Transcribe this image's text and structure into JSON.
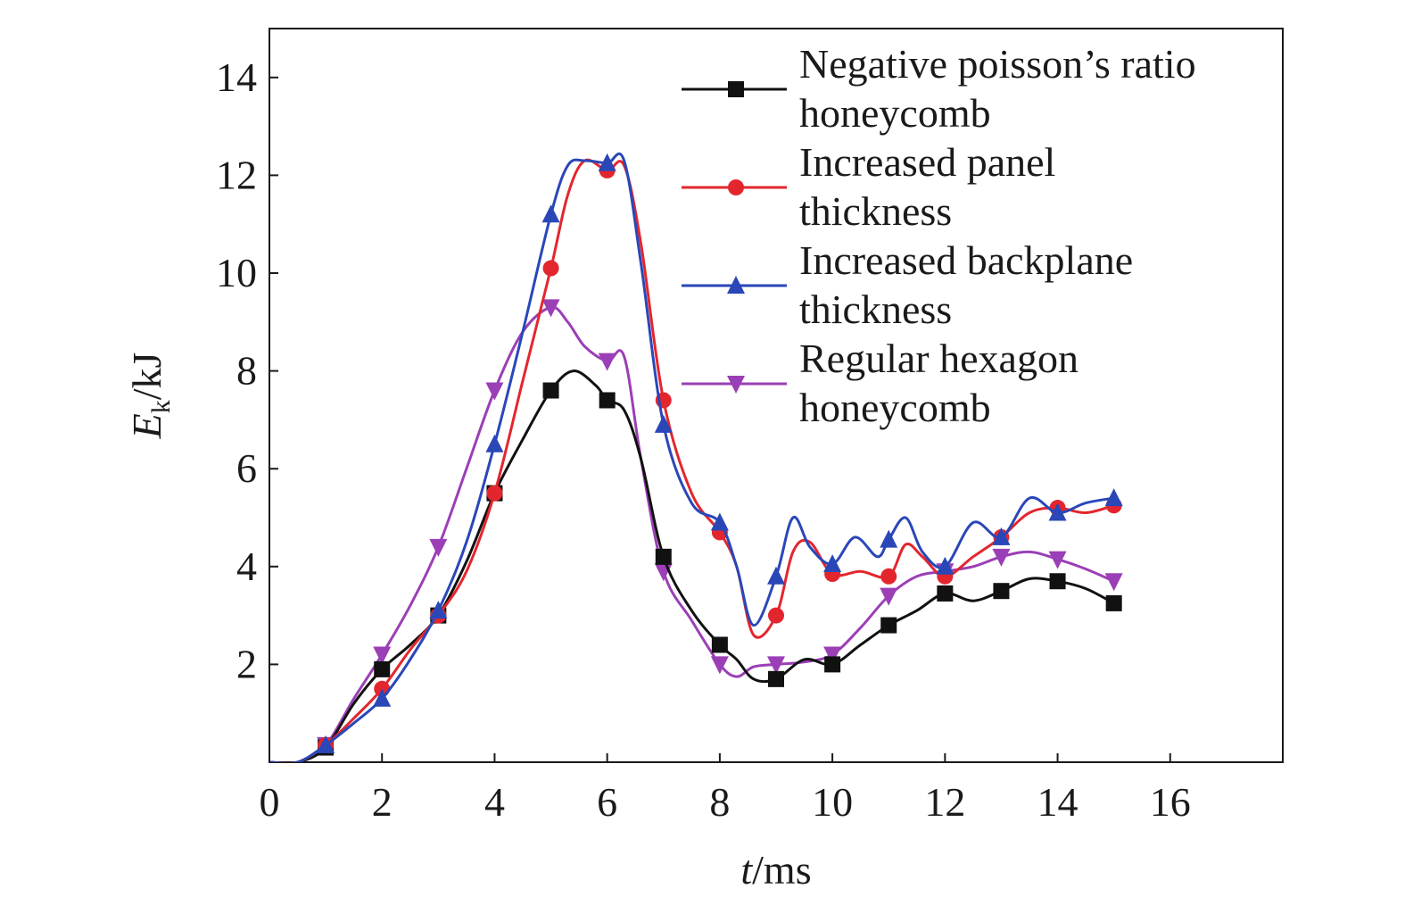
{
  "chart_data": {
    "type": "line",
    "xlabel": {
      "var": "t",
      "unit": "/ms"
    },
    "ylabel": {
      "var": "E",
      "sub": "k",
      "unit": "/kJ"
    },
    "xlim": [
      0,
      18
    ],
    "ylim": [
      0,
      15
    ],
    "x_ticks": [
      0,
      2,
      4,
      6,
      8,
      10,
      12,
      14,
      16
    ],
    "y_ticks": [
      2,
      4,
      6,
      8,
      10,
      12,
      14
    ],
    "grid": false,
    "legend_position": "top-right",
    "series": [
      {
        "name": [
          "Negative poisson’s ratio",
          "honeycomb"
        ],
        "color": "#111111",
        "marker": "square",
        "x": [
          0,
          0.5,
          1,
          1.5,
          2,
          2.5,
          3,
          3.5,
          4,
          4.5,
          5,
          5.4,
          5.8,
          6,
          6.3,
          6.6,
          7,
          7.5,
          8,
          8.3,
          8.6,
          9,
          9.5,
          10,
          10.5,
          11,
          11.5,
          12,
          12.5,
          13,
          13.5,
          14,
          14.5,
          15
        ],
        "y": [
          0,
          0,
          0.3,
          1.2,
          1.9,
          2.4,
          3.0,
          4.1,
          5.5,
          6.6,
          7.6,
          8.0,
          7.7,
          7.4,
          7.2,
          6.2,
          4.2,
          3.1,
          2.4,
          2.1,
          1.7,
          1.7,
          2.1,
          2.0,
          2.4,
          2.8,
          3.1,
          3.45,
          3.3,
          3.5,
          3.75,
          3.7,
          3.55,
          3.25
        ],
        "marker_x": [
          1,
          2,
          3,
          4,
          5,
          6,
          7,
          8,
          9,
          10,
          11,
          12,
          13,
          14,
          15
        ]
      },
      {
        "name": [
          "Increased panel",
          "thickness"
        ],
        "color": "#e3262e",
        "marker": "circle",
        "x": [
          0,
          0.5,
          1,
          1.5,
          2,
          2.5,
          3,
          3.5,
          4,
          4.5,
          5,
          5.3,
          5.6,
          6,
          6.3,
          6.6,
          7,
          7.5,
          8,
          8.3,
          8.6,
          9,
          9.3,
          9.6,
          10,
          10.5,
          11,
          11.3,
          11.6,
          12,
          12.5,
          13,
          13.5,
          14,
          14.5,
          15
        ],
        "y": [
          0,
          0,
          0.35,
          0.9,
          1.5,
          2.3,
          3.0,
          3.9,
          5.5,
          7.8,
          10.1,
          11.6,
          12.3,
          12.1,
          12.2,
          10.6,
          7.4,
          5.5,
          4.7,
          4.0,
          2.6,
          3.0,
          4.3,
          4.5,
          3.85,
          3.9,
          3.8,
          4.45,
          4.2,
          3.8,
          4.2,
          4.6,
          5.1,
          5.2,
          5.1,
          5.25
        ],
        "marker_x": [
          1,
          2,
          3,
          4,
          5,
          6,
          7,
          8,
          9,
          10,
          11,
          12,
          13,
          14,
          15
        ]
      },
      {
        "name": [
          "Increased backplane",
          "thickness"
        ],
        "color": "#2a47b8",
        "marker": "triangle-up",
        "x": [
          0,
          0.5,
          1,
          1.5,
          2,
          2.5,
          3,
          3.5,
          4,
          4.5,
          5,
          5.3,
          5.6,
          6,
          6.3,
          6.6,
          7,
          7.5,
          8,
          8.3,
          8.6,
          9,
          9.3,
          9.6,
          10,
          10.4,
          10.8,
          11,
          11.3,
          11.6,
          12,
          12.5,
          13,
          13.5,
          14,
          14.5,
          15
        ],
        "y": [
          0,
          0,
          0.35,
          0.8,
          1.3,
          2.1,
          3.1,
          4.5,
          6.5,
          8.8,
          11.2,
          12.2,
          12.3,
          12.25,
          12.3,
          10.2,
          6.9,
          5.3,
          4.9,
          4.0,
          2.8,
          3.8,
          5.0,
          4.4,
          4.05,
          4.6,
          4.2,
          4.55,
          5.0,
          4.3,
          4.0,
          4.9,
          4.6,
          5.4,
          5.1,
          5.3,
          5.4
        ],
        "marker_x": [
          1,
          2,
          3,
          4,
          5,
          6,
          7,
          8,
          9,
          10,
          11,
          12,
          13,
          14,
          15
        ]
      },
      {
        "name": [
          "Regular hexagon",
          "honeycomb"
        ],
        "color": "#9b3fb6",
        "marker": "triangle-down",
        "x": [
          0,
          0.5,
          1,
          1.5,
          2,
          2.5,
          3,
          3.5,
          4,
          4.5,
          5,
          5.3,
          5.6,
          6,
          6.3,
          6.6,
          7,
          7.5,
          8,
          8.3,
          8.6,
          9,
          9.5,
          10,
          10.5,
          11,
          11.5,
          12,
          12.5,
          13,
          13.5,
          14,
          14.5,
          15
        ],
        "y": [
          0,
          0,
          0.35,
          1.3,
          2.2,
          3.2,
          4.4,
          6.0,
          7.6,
          8.8,
          9.3,
          9.0,
          8.5,
          8.2,
          8.3,
          6.2,
          3.9,
          2.9,
          2.0,
          1.75,
          1.95,
          2.0,
          2.05,
          2.2,
          2.75,
          3.4,
          3.8,
          3.9,
          4.0,
          4.2,
          4.3,
          4.15,
          3.95,
          3.7
        ],
        "marker_x": [
          1,
          2,
          3,
          4,
          5,
          6,
          7,
          8,
          9,
          10,
          11,
          12,
          13,
          14,
          15
        ]
      }
    ]
  }
}
